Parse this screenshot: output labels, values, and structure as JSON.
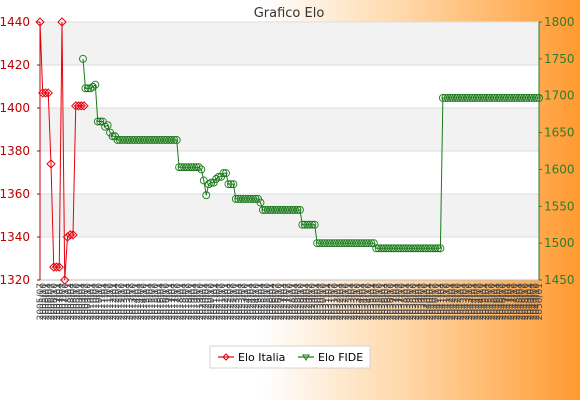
{
  "chart_data": {
    "type": "line",
    "title": "Grafico Elo",
    "x_tick_labels": [
      "2005/07",
      "2005/10",
      "2006/01",
      "2006/04",
      "2006/07",
      "2006/10",
      "2007/01",
      "2007/04",
      "2007/07",
      "2007/10",
      "2008/01",
      "2008/04",
      "2008/07",
      "2008/10",
      "2009/01",
      "2009/04",
      "2009/07",
      "2009/10",
      "2010/01",
      "2010/04",
      "2010/07",
      "2010/10",
      "2011/01",
      "2011/04",
      "2011/07",
      "2011/10",
      "2012/01",
      "2012/04",
      "2012/07",
      "2012/10",
      "2013/01",
      "2013/04",
      "2013/07",
      "2013/10",
      "2014/01",
      "2014/04",
      "2014/07",
      "2014/10",
      "2015/01",
      "2015/04",
      "2015/07",
      "2015/10",
      "2016/01",
      "2016/04",
      "2016/07",
      "2016/10",
      "2017/01",
      "2017/04",
      "2017/07",
      "2017/10",
      "2018/01",
      "2018/04",
      "2018/07",
      "2018/10",
      "2019/01",
      "2019/04",
      "2019/07",
      "2019/10",
      "2020/01",
      "2020/04",
      "2020/07",
      "2020/10",
      "2021/01",
      "2021/04",
      "2021/07",
      "2021/10",
      "2022/01",
      "2022/04",
      "2022/07",
      "2022/10",
      "2023/01",
      "2023/04",
      "2023/07",
      "2023/10",
      "2024/01",
      "2024/04",
      "2024/07",
      "2024/10",
      "2025/01",
      "2025/04",
      "2025/07",
      "2025/10",
      "2026/01",
      "2026/04",
      "2026/07",
      "2026/10",
      "2027/01",
      "2027/04",
      "2027/07",
      "2027/10",
      "2028/01",
      "2028/04",
      "2028/07",
      "2028/10",
      "2029/01",
      "2029/04",
      "2029/07",
      "2029/10",
      "2030/01",
      "2030/04",
      "2030/07",
      "2030/10",
      "2031/01",
      "2031/04",
      "2031/07",
      "2031/10",
      "2032/01",
      "2032/04",
      "2032/07",
      "2032/10",
      "2033/01",
      "2033/04",
      "2033/07",
      "2033/10",
      "2034/01",
      "2034/04",
      "2034/07",
      "2034/10",
      "2035/01",
      "2035/04",
      "2035/07",
      "2035/10",
      "2036/01",
      "2036/04",
      "2036/07",
      "2036/10",
      "2037/01",
      "2037/04",
      "2037/07",
      "2037/10",
      "2038/01",
      "2038/04",
      "2038/07",
      "2038/10",
      "2039/01",
      "2039/04",
      "2039/07",
      "2039/10",
      "2040/01",
      "2040/04",
      "2040/07",
      "2040/10",
      "2041/01",
      "2041/04",
      "2041/07",
      "2041/10",
      "2042/01",
      "2042/04",
      "2042/07",
      "2042/10",
      "2043/01",
      "2043/04",
      "2043/07",
      "2043/10",
      "2044/01",
      "2044/04",
      "2044/07",
      "2044/10",
      "2045/01",
      "2045/04",
      "2045/07",
      "2045/10",
      "2046/01",
      "2046/04",
      "2046/07",
      "2046/10",
      "2047/01",
      "2047/04",
      "2047/07",
      "2047/10",
      "2048/01",
      "2048/04",
      "2048/07",
      "2048/10",
      "2049/01",
      "2049/04",
      "2049/07",
      "2049/10",
      "2050/01"
    ],
    "y_left": {
      "label": "",
      "range": [
        1320,
        1440
      ],
      "ticks": [
        1320,
        1340,
        1360,
        1380,
        1400,
        1420,
        1440
      ],
      "color": "#c00000"
    },
    "y_right": {
      "label": "",
      "range": [
        1450,
        1800
      ],
      "ticks": [
        1450,
        1500,
        1550,
        1600,
        1650,
        1700,
        1750,
        1800
      ],
      "color": "#2e7d2e"
    },
    "grid": true,
    "legend_position": "bottom-center",
    "series": [
      {
        "name": "Elo Italia",
        "axis": "left",
        "color": "#e8000b",
        "values": [
          1440,
          1407,
          1407,
          1407,
          1374,
          1326,
          1326,
          1326,
          1440,
          1320,
          1340,
          1341,
          1341,
          1401,
          1401,
          1401,
          1401
        ]
      },
      {
        "name": "Elo FIDE",
        "axis": "right",
        "color": "#1a7a1a",
        "values": [
          1750,
          1710,
          1710,
          1710,
          1712,
          1715,
          1665,
          1665,
          1665,
          1658,
          1660,
          1650,
          1645,
          1645,
          1640,
          1640,
          1640,
          1640,
          1640,
          1640,
          1640,
          1640,
          1640,
          1640,
          1640,
          1640,
          1640,
          1640,
          1640,
          1640,
          1640,
          1640,
          1640,
          1640,
          1640,
          1640,
          1640,
          1640,
          1640,
          1603,
          1603,
          1603,
          1603,
          1603,
          1603,
          1603,
          1603,
          1603,
          1600,
          1585,
          1565,
          1580,
          1582,
          1582,
          1587,
          1590,
          1590,
          1595,
          1595,
          1580,
          1580,
          1580,
          1560,
          1560,
          1560,
          1560,
          1560,
          1560,
          1560,
          1560,
          1560,
          1560,
          1555,
          1545,
          1545,
          1545,
          1545,
          1545,
          1545,
          1545,
          1545,
          1545,
          1545,
          1545,
          1545,
          1545,
          1545,
          1545,
          1545,
          1525,
          1525,
          1525,
          1525,
          1525,
          1525,
          1500,
          1500,
          1500,
          1500,
          1500,
          1500,
          1500,
          1500,
          1500,
          1500,
          1500,
          1500,
          1500,
          1500,
          1500,
          1500,
          1500,
          1500,
          1500,
          1500,
          1500,
          1500,
          1500,
          1500,
          1493,
          1493,
          1493,
          1493,
          1493,
          1493,
          1493,
          1493,
          1493,
          1493,
          1493,
          1493,
          1493,
          1493,
          1493,
          1493,
          1493,
          1493,
          1493,
          1493,
          1493,
          1493,
          1493,
          1493,
          1493,
          1493,
          1493,
          1697,
          1697,
          1697,
          1697,
          1697,
          1697,
          1697,
          1697,
          1697,
          1697,
          1697,
          1697,
          1697,
          1697,
          1697,
          1697,
          1697,
          1697,
          1697,
          1697,
          1697,
          1697,
          1697,
          1697,
          1697,
          1697,
          1697,
          1697,
          1697,
          1697,
          1697,
          1697,
          1697,
          1697,
          1697,
          1697,
          1697,
          1697,
          1697,
          1697
        ]
      }
    ]
  }
}
